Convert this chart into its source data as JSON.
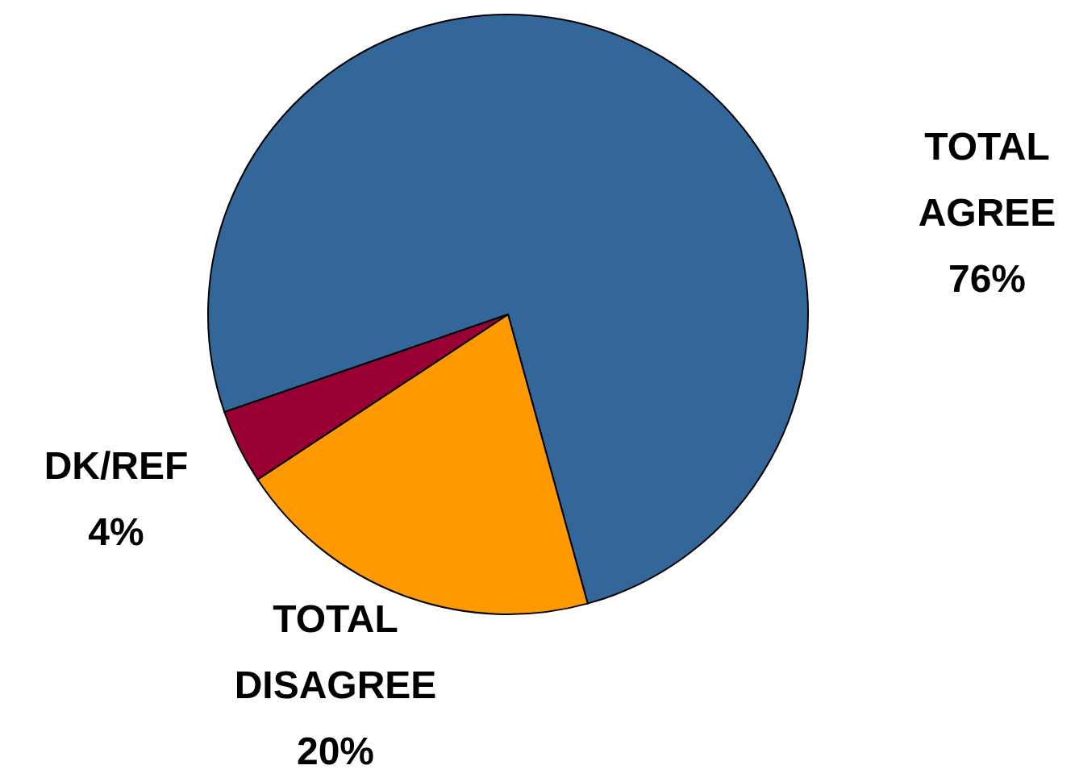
{
  "chart_data": {
    "type": "pie",
    "categories": [
      "TOTAL AGREE",
      "TOTAL DISAGREE",
      "DK/REF"
    ],
    "values": [
      76,
      20,
      4
    ],
    "colors": [
      "#336699",
      "#ff9900",
      "#990033"
    ],
    "value_labels": [
      "76%",
      "20%",
      "4%"
    ],
    "legend": false
  }
}
